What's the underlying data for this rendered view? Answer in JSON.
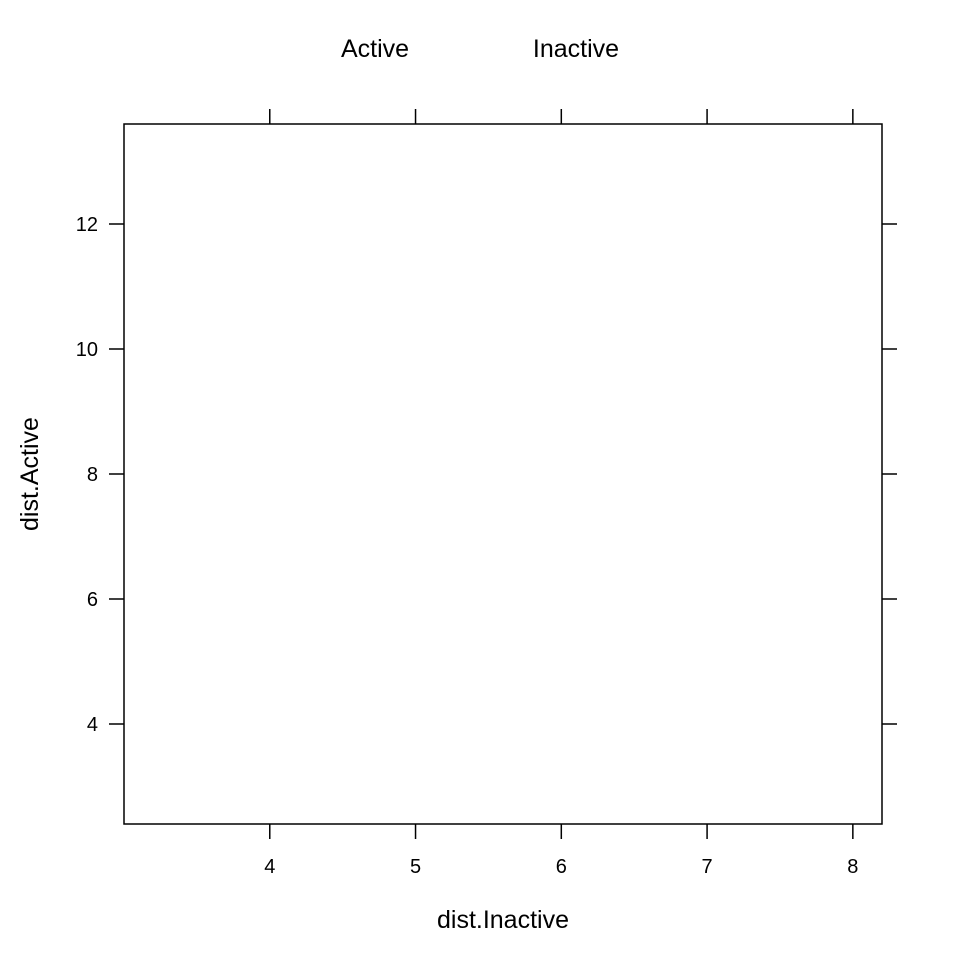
{
  "chart_data": {
    "type": "scatter",
    "title": "",
    "xlabel": "dist.Inactive",
    "ylabel": "dist.Active",
    "xlim": [
      3.0,
      8.2
    ],
    "ylim": [
      2.4,
      13.6
    ],
    "x_ticks": [
      4,
      5,
      6,
      7,
      8
    ],
    "y_ticks": [
      4,
      6,
      8,
      10,
      12
    ],
    "legend": {
      "placement": "top",
      "entries": [
        "Active",
        "Inactive"
      ]
    },
    "series": [
      {
        "name": "Active",
        "points": []
      },
      {
        "name": "Inactive",
        "points": []
      }
    ],
    "grid": false
  }
}
